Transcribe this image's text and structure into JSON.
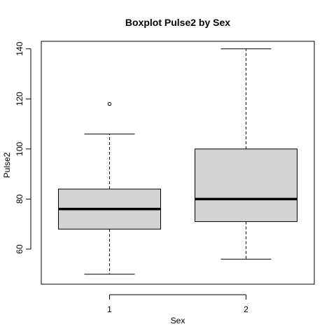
{
  "chart_data": {
    "type": "boxplot",
    "title": "Boxplot Pulse2 by Sex",
    "xlabel": "Sex",
    "ylabel": "Pulse2",
    "categories": [
      "1",
      "2"
    ],
    "ylim": [
      46,
      143
    ],
    "y_ticks": [
      "60",
      "80",
      "100",
      "120",
      "140"
    ],
    "boxes": [
      {
        "category": "1",
        "whisker_low": 50,
        "q1": 68,
        "median": 76,
        "q3": 84,
        "whisker_high": 106,
        "outliers": [
          118
        ]
      },
      {
        "category": "2",
        "whisker_low": 56,
        "q1": 71,
        "median": 80,
        "q3": 100,
        "whisker_high": 140,
        "outliers": []
      }
    ],
    "box_fill": "#d3d3d3",
    "grid": false
  }
}
